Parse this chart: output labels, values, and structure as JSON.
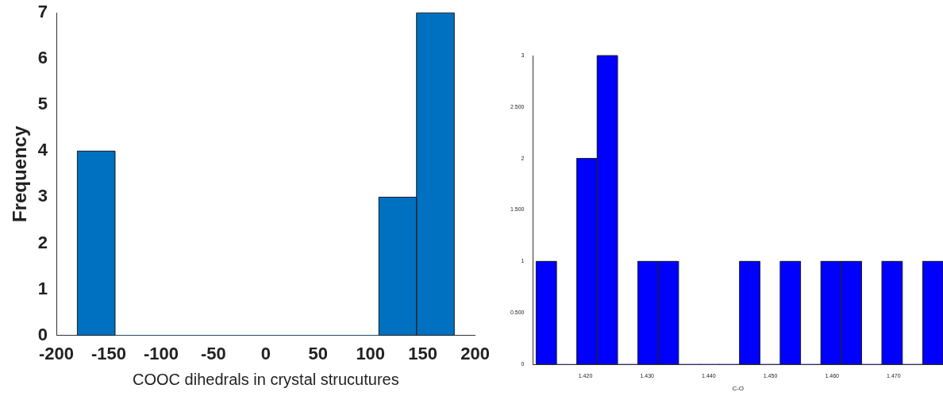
{
  "chart_data": [
    {
      "type": "histogram",
      "xlabel": "COOC dihedrals in crystal strucutures",
      "ylabel": "Frequency",
      "bins": [
        -180,
        -144,
        -108,
        -72,
        -36,
        0,
        36,
        72,
        108,
        144,
        180
      ],
      "values": [
        4,
        0,
        0,
        0,
        0,
        0,
        0,
        0,
        3,
        7
      ],
      "color": "#0070c0",
      "xlim": [
        -200,
        200
      ],
      "xticks": [
        -200,
        -150,
        -100,
        -50,
        0,
        50,
        100,
        150,
        200
      ],
      "ylim": [
        0,
        7
      ],
      "yticks": [
        0,
        1,
        2,
        3,
        4,
        5,
        6,
        7
      ],
      "grid": false,
      "legend": false
    },
    {
      "type": "histogram",
      "xlabel": "C-O",
      "bins": [
        1.412,
        1.4153,
        1.4186,
        1.4219,
        1.4252,
        1.4285,
        1.4318,
        1.4351,
        1.4384,
        1.4417,
        1.445,
        1.4483,
        1.4516,
        1.4549,
        1.4582,
        1.4615,
        1.4648,
        1.4681,
        1.4714,
        1.4747,
        1.478
      ],
      "values": [
        1,
        0,
        2,
        3,
        0,
        1,
        1,
        0,
        0,
        0,
        1,
        0,
        1,
        0,
        1,
        1,
        0,
        1,
        0,
        1
      ],
      "color": "#0000ff",
      "xlim": [
        1.4115,
        1.478
      ],
      "xticks": [
        {
          "value": 1.42,
          "label": "1.420"
        },
        {
          "value": 1.43,
          "label": "1.430"
        },
        {
          "value": 1.44,
          "label": "1.440"
        },
        {
          "value": 1.45,
          "label": "1.450"
        },
        {
          "value": 1.46,
          "label": "1.460"
        },
        {
          "value": 1.47,
          "label": "1.470"
        }
      ],
      "ylim": [
        0,
        3
      ],
      "yticks": [
        0,
        {
          "value": 0.5,
          "label": "0.500"
        },
        1,
        {
          "value": 1.5,
          "label": "1.500"
        },
        2,
        {
          "value": 2.5,
          "label": "2.500"
        },
        3
      ],
      "grid": false,
      "legend": false
    }
  ]
}
